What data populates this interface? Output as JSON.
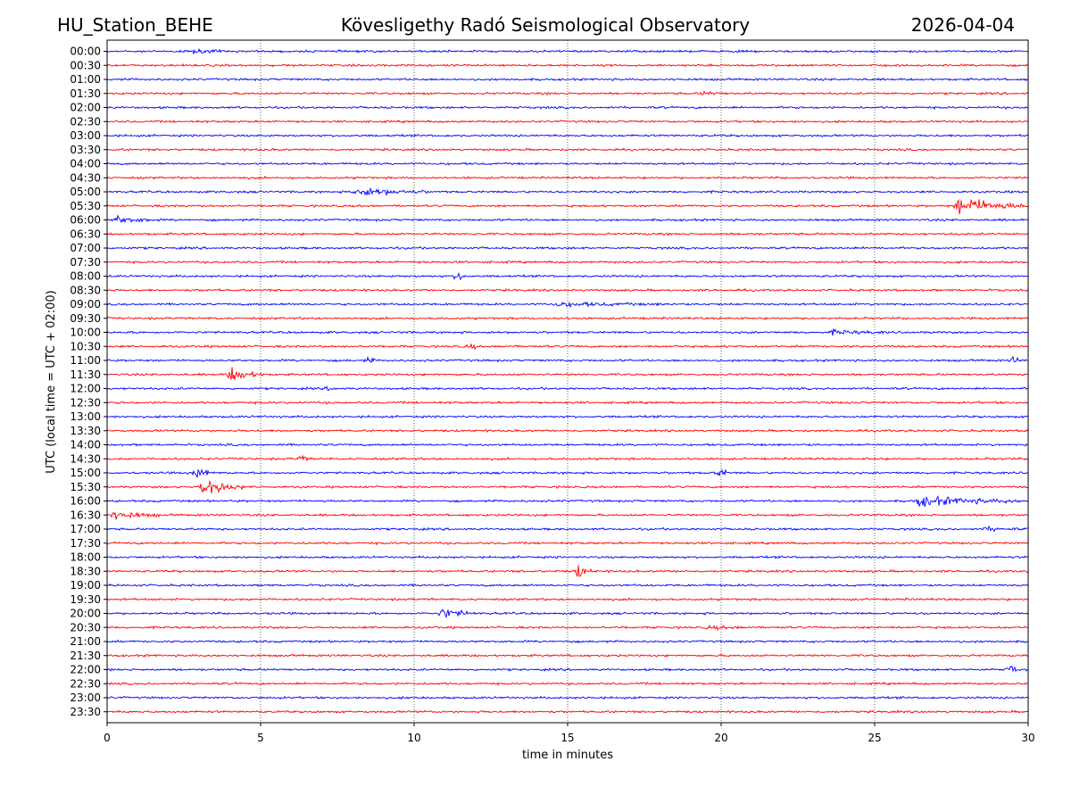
{
  "header": {
    "station": "HU_Station_BEHE",
    "observatory": "Kövesligethy Radó Seismological Observatory",
    "date": "2026-04-04"
  },
  "chart_data": {
    "type": "line",
    "title": "Kövesligethy Radó Seismological Observatory",
    "xlabel": "time in minutes",
    "ylabel": "UTC (local time = UTC + 02:00)",
    "xlim": [
      0,
      30
    ],
    "xticks": [
      0,
      5,
      10,
      15,
      20,
      25,
      30
    ],
    "grid": "vertical dotted at x ticks",
    "colors": {
      "even_rows": "#0000ff",
      "odd_rows": "#ff0000"
    },
    "rows": [
      "00:00",
      "00:30",
      "01:00",
      "01:30",
      "02:00",
      "02:30",
      "03:00",
      "03:30",
      "04:00",
      "04:30",
      "05:00",
      "05:30",
      "06:00",
      "06:30",
      "07:00",
      "07:30",
      "08:00",
      "08:30",
      "09:00",
      "09:30",
      "10:00",
      "10:30",
      "11:00",
      "11:30",
      "12:00",
      "12:30",
      "13:00",
      "13:30",
      "14:00",
      "14:30",
      "15:00",
      "15:30",
      "16:00",
      "16:30",
      "17:00",
      "17:30",
      "18:00",
      "18:30",
      "19:00",
      "19:30",
      "20:00",
      "20:30",
      "21:00",
      "21:30",
      "22:00",
      "22:30",
      "23:00",
      "23:30"
    ],
    "events": [
      {
        "row": "00:00",
        "minute": 2.6,
        "amp": 0.6,
        "dur": 1.2
      },
      {
        "row": "01:30",
        "minute": 19.3,
        "amp": 0.5,
        "dur": 1.0
      },
      {
        "row": "05:00",
        "minute": 8.0,
        "amp": 1.4,
        "dur": 2.5
      },
      {
        "row": "05:30",
        "minute": 27.6,
        "amp": 3.0,
        "dur": 2.4
      },
      {
        "row": "06:00",
        "minute": 0.2,
        "amp": 1.2,
        "dur": 1.5
      },
      {
        "row": "08:00",
        "minute": 11.3,
        "amp": 1.6,
        "dur": 0.4
      },
      {
        "row": "09:00",
        "minute": 14.5,
        "amp": 0.6,
        "dur": 4.0
      },
      {
        "row": "10:00",
        "minute": 23.5,
        "amp": 0.6,
        "dur": 2.0
      },
      {
        "row": "10:30",
        "minute": 11.7,
        "amp": 0.9,
        "dur": 0.4
      },
      {
        "row": "11:00",
        "minute": 8.4,
        "amp": 1.0,
        "dur": 0.3
      },
      {
        "row": "11:00",
        "minute": 29.4,
        "amp": 1.2,
        "dur": 0.3
      },
      {
        "row": "11:30",
        "minute": 3.9,
        "amp": 2.2,
        "dur": 1.2
      },
      {
        "row": "12:00",
        "minute": 7.1,
        "amp": 0.6,
        "dur": 0.4
      },
      {
        "row": "14:30",
        "minute": 6.2,
        "amp": 1.0,
        "dur": 0.4
      },
      {
        "row": "15:00",
        "minute": 2.8,
        "amp": 2.2,
        "dur": 0.5
      },
      {
        "row": "15:00",
        "minute": 19.8,
        "amp": 1.4,
        "dur": 0.5
      },
      {
        "row": "15:30",
        "minute": 3.0,
        "amp": 3.2,
        "dur": 1.4
      },
      {
        "row": "16:00",
        "minute": 26.3,
        "amp": 1.6,
        "dur": 3.7
      },
      {
        "row": "16:30",
        "minute": 0.1,
        "amp": 1.4,
        "dur": 1.6
      },
      {
        "row": "17:00",
        "minute": 28.5,
        "amp": 0.5,
        "dur": 1.5
      },
      {
        "row": "18:30",
        "minute": 15.2,
        "amp": 2.0,
        "dur": 0.6
      },
      {
        "row": "20:00",
        "minute": 10.8,
        "amp": 1.6,
        "dur": 1.2
      },
      {
        "row": "20:30",
        "minute": 19.5,
        "amp": 0.5,
        "dur": 1.5
      },
      {
        "row": "22:00",
        "minute": 29.3,
        "amp": 1.8,
        "dur": 0.3
      }
    ]
  }
}
